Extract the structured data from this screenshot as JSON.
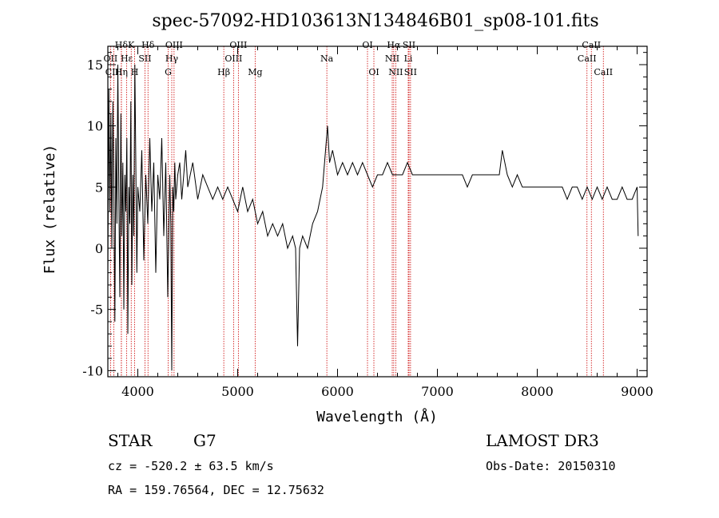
{
  "chart_data": {
    "type": "line",
    "title": "spec-57092-HD103613N134846B01_sp08-101.fits",
    "xlabel": "Wavelength (Å)",
    "ylabel": "Flux (relative)",
    "xlim": [
      3700,
      9100
    ],
    "ylim": [
      -10.5,
      16.5
    ],
    "xticks": [
      4000,
      5000,
      6000,
      7000,
      8000,
      9000
    ],
    "yticks": [
      -10,
      -5,
      0,
      5,
      10,
      15
    ],
    "grid": false,
    "spectral_lines": [
      {
        "label": "Hδ",
        "wavelength": 3835,
        "row": 0
      },
      {
        "label": "OII",
        "wavelength": 3727,
        "row": 1
      },
      {
        "label": "CIII",
        "wavelength": 3760,
        "row": 2
      },
      {
        "label": "Hε",
        "wavelength": 3889,
        "row": 1
      },
      {
        "label": "K",
        "wavelength": 3934,
        "row": 0
      },
      {
        "label": "H",
        "wavelength": 3968,
        "row": 2
      },
      {
        "label": "Hη",
        "wavelength": 3835,
        "row": 2
      },
      {
        "label": "SII",
        "wavelength": 4072,
        "row": 1
      },
      {
        "label": "Hδ",
        "wavelength": 4102,
        "row": 0
      },
      {
        "label": "OIII",
        "wavelength": 4363,
        "row": 0
      },
      {
        "label": "Hγ",
        "wavelength": 4340,
        "row": 1
      },
      {
        "label": "G",
        "wavelength": 4304,
        "row": 2
      },
      {
        "label": "Hβ",
        "wavelength": 4861,
        "row": 2
      },
      {
        "label": "OIII",
        "wavelength": 4959,
        "row": 1
      },
      {
        "label": "OIII",
        "wavelength": 5007,
        "row": 0
      },
      {
        "label": "Mg",
        "wavelength": 5175,
        "row": 2
      },
      {
        "label": "Na",
        "wavelength": 5893,
        "row": 1
      },
      {
        "label": "OI",
        "wavelength": 6300,
        "row": 0
      },
      {
        "label": "OI",
        "wavelength": 6364,
        "row": 2
      },
      {
        "label": "Hα",
        "wavelength": 6563,
        "row": 0
      },
      {
        "label": "NII",
        "wavelength": 6548,
        "row": 1
      },
      {
        "label": "NII",
        "wavelength": 6583,
        "row": 2
      },
      {
        "label": "SII",
        "wavelength": 6716,
        "row": 0
      },
      {
        "label": "Li",
        "wavelength": 6708,
        "row": 1
      },
      {
        "label": "SII",
        "wavelength": 6731,
        "row": 2
      },
      {
        "label": "CaII",
        "wavelength": 8542,
        "row": 0
      },
      {
        "label": "CaII",
        "wavelength": 8498,
        "row": 1
      },
      {
        "label": "CaII",
        "wavelength": 8662,
        "row": 2
      }
    ],
    "series": [
      {
        "name": "flux",
        "x": [
          3700,
          3710,
          3720,
          3730,
          3740,
          3750,
          3760,
          3770,
          3780,
          3790,
          3800,
          3810,
          3820,
          3830,
          3840,
          3850,
          3860,
          3870,
          3880,
          3890,
          3900,
          3910,
          3920,
          3930,
          3940,
          3950,
          3960,
          3970,
          3980,
          3990,
          4000,
          4020,
          4040,
          4060,
          4080,
          4100,
          4120,
          4140,
          4160,
          4180,
          4200,
          4220,
          4240,
          4260,
          4280,
          4300,
          4320,
          4330,
          4340,
          4350,
          4360,
          4370,
          4380,
          4400,
          4420,
          4440,
          4460,
          4480,
          4500,
          4550,
          4600,
          4650,
          4700,
          4750,
          4800,
          4850,
          4900,
          4950,
          5000,
          5050,
          5100,
          5150,
          5200,
          5250,
          5300,
          5350,
          5400,
          5450,
          5500,
          5550,
          5580,
          5600,
          5620,
          5650,
          5700,
          5750,
          5800,
          5850,
          5880,
          5900,
          5920,
          5950,
          6000,
          6050,
          6100,
          6150,
          6200,
          6250,
          6300,
          6350,
          6400,
          6450,
          6500,
          6550,
          6600,
          6650,
          6700,
          6750,
          6800,
          6850,
          6900,
          6950,
          7000,
          7050,
          7100,
          7150,
          7200,
          7250,
          7300,
          7350,
          7400,
          7450,
          7500,
          7550,
          7600,
          7620,
          7650,
          7700,
          7750,
          7800,
          7850,
          7900,
          7950,
          8000,
          8050,
          8100,
          8150,
          8200,
          8250,
          8300,
          8350,
          8400,
          8450,
          8500,
          8550,
          8600,
          8650,
          8700,
          8750,
          8800,
          8850,
          8900,
          8950,
          9000,
          9010
        ],
        "y": [
          -2,
          13,
          3,
          11,
          0,
          12,
          5,
          -6,
          9,
          2,
          15,
          4,
          -4,
          11,
          1,
          7,
          -5,
          6,
          3,
          9,
          -7,
          5,
          2,
          12,
          -3,
          6,
          1,
          15,
          7,
          -2,
          5,
          3,
          8,
          -1,
          6,
          2,
          9,
          3,
          7,
          -2,
          6,
          4,
          9,
          1,
          7,
          -4,
          6,
          2,
          -10,
          5,
          3,
          7,
          4,
          6,
          7,
          4,
          6,
          8,
          5,
          7,
          4,
          6,
          5,
          4,
          5,
          4,
          5,
          4,
          3,
          5,
          3,
          4,
          2,
          3,
          1,
          2,
          1,
          2,
          0,
          1,
          0,
          -8,
          0,
          1,
          0,
          2,
          3,
          5,
          8,
          10,
          7,
          8,
          6,
          7,
          6,
          7,
          6,
          7,
          6,
          5,
          6,
          6,
          7,
          6,
          6,
          6,
          7,
          6,
          6,
          6,
          6,
          6,
          6,
          6,
          6,
          6,
          6,
          6,
          5,
          6,
          6,
          6,
          6,
          6,
          6,
          6,
          8,
          6,
          5,
          6,
          5,
          5,
          5,
          5,
          5,
          5,
          5,
          5,
          5,
          4,
          5,
          5,
          4,
          5,
          4,
          5,
          4,
          5,
          4,
          4,
          5,
          4,
          4,
          5,
          1
        ]
      }
    ]
  },
  "info": {
    "object_class": "STAR",
    "subclass": "G7",
    "survey": "LAMOST DR3",
    "redshift": "cz = -520.2 ± 63.5 km/s",
    "obs_date": "Obs-Date: 20150310",
    "coords": "RA = 159.76564, DEC =  12.75632"
  }
}
